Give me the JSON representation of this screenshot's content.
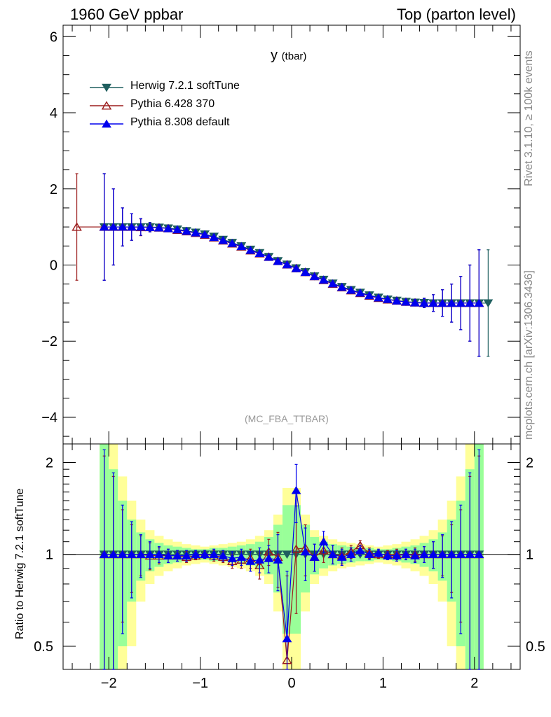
{
  "header": {
    "left": "1960 GeV ppbar",
    "right": "Top (parton level)"
  },
  "plot": {
    "title": "y",
    "title_sub": "(tbar)",
    "process": "(MC_FBA_TTBAR)"
  },
  "side_labels": {
    "rivet": "Rivet 3.1.10, ≥ 100k events",
    "mcplots": "mcplots.cern.ch [arXiv:1306.3436]"
  },
  "ratio_ylabel": "Ratio to Herwig 7.2.1 softTune",
  "legend": [
    {
      "label": "Herwig 7.2.1 softTune",
      "color": "#1f5f5f",
      "marker": "triangle-down-filled"
    },
    {
      "label": "Pythia 6.428 370",
      "color": "#9b1c1c",
      "marker": "triangle-up-open"
    },
    {
      "label": "Pythia 8.308 default",
      "color": "#0000ee",
      "marker": "triangle-up-filled"
    }
  ],
  "chart_data": [
    {
      "type": "line",
      "panel": "main",
      "xlim": [
        -2.5,
        2.5
      ],
      "ylim": [
        -4.7,
        6.3
      ],
      "xticks": [
        -2,
        -1,
        0,
        1,
        2
      ],
      "yticks": [
        -4,
        -2,
        0,
        2,
        4,
        6
      ],
      "ytick_labels": [
        "−4",
        "−2",
        "0",
        "2",
        "4",
        "6"
      ],
      "x": [
        -2.35,
        -2.05,
        -1.95,
        -1.85,
        -1.75,
        -1.65,
        -1.55,
        -1.45,
        -1.35,
        -1.25,
        -1.15,
        -1.05,
        -0.95,
        -0.85,
        -0.75,
        -0.65,
        -0.55,
        -0.45,
        -0.35,
        -0.25,
        -0.15,
        -0.05,
        0.05,
        0.15,
        0.25,
        0.35,
        0.45,
        0.55,
        0.65,
        0.75,
        0.85,
        0.95,
        1.05,
        1.15,
        1.25,
        1.35,
        1.45,
        1.55,
        1.65,
        1.75,
        1.85,
        1.95,
        2.05,
        2.15
      ],
      "series": [
        {
          "name": "Herwig 7.2.1 softTune",
          "y": [
            null,
            1.0,
            1.0,
            1.0,
            1.0,
            1.0,
            1.0,
            0.99,
            0.97,
            0.94,
            0.9,
            0.86,
            0.81,
            0.75,
            0.67,
            0.59,
            0.5,
            0.41,
            0.32,
            0.22,
            0.11,
            0.02,
            -0.08,
            -0.18,
            -0.29,
            -0.38,
            -0.48,
            -0.57,
            -0.65,
            -0.72,
            -0.79,
            -0.85,
            -0.9,
            -0.93,
            -0.96,
            -0.98,
            -0.99,
            -1.0,
            -1.0,
            -1.0,
            -1.0,
            -1.0,
            -1.0,
            -1.0
          ],
          "yerr": [
            null,
            1.4,
            1.0,
            0.5,
            0.35,
            0.22,
            0.12,
            0.08,
            0.06,
            0.05,
            0.05,
            0.04,
            0.04,
            0.04,
            0.04,
            0.04,
            0.04,
            0.04,
            0.04,
            0.04,
            0.04,
            0.04,
            0.04,
            0.04,
            0.04,
            0.04,
            0.04,
            0.04,
            0.04,
            0.04,
            0.04,
            0.04,
            0.05,
            0.05,
            0.06,
            0.08,
            0.12,
            0.22,
            0.35,
            0.5,
            0.7,
            1.0,
            1.4,
            1.4
          ]
        },
        {
          "name": "Pythia 6.428 370",
          "y": [
            1.0,
            1.0,
            1.0,
            1.0,
            1.0,
            0.99,
            0.99,
            0.98,
            0.96,
            0.92,
            0.88,
            0.84,
            0.79,
            0.72,
            0.64,
            0.56,
            0.48,
            0.38,
            0.3,
            0.21,
            0.1,
            0.01,
            -0.09,
            -0.19,
            -0.3,
            -0.4,
            -0.5,
            -0.59,
            -0.67,
            -0.74,
            -0.81,
            -0.87,
            -0.91,
            -0.94,
            -0.97,
            -0.99,
            -1.0,
            -1.0,
            -1.0,
            -1.0,
            -1.0,
            -1.0,
            -1.0,
            null
          ],
          "yerr": [
            1.4,
            1.4,
            1.0,
            0.5,
            0.35,
            0.22,
            0.12,
            0.08,
            0.06,
            0.05,
            0.05,
            0.04,
            0.04,
            0.04,
            0.04,
            0.04,
            0.04,
            0.04,
            0.04,
            0.04,
            0.04,
            0.04,
            0.04,
            0.04,
            0.04,
            0.04,
            0.04,
            0.04,
            0.04,
            0.04,
            0.04,
            0.04,
            0.05,
            0.05,
            0.06,
            0.08,
            0.12,
            0.22,
            0.35,
            0.5,
            0.7,
            1.0,
            1.4,
            null
          ]
        },
        {
          "name": "Pythia 8.308 default",
          "y": [
            null,
            1.0,
            1.0,
            1.0,
            1.0,
            1.0,
            0.99,
            0.98,
            0.96,
            0.93,
            0.89,
            0.85,
            0.8,
            0.73,
            0.65,
            0.57,
            0.49,
            0.39,
            0.31,
            0.21,
            0.1,
            0.01,
            -0.09,
            -0.19,
            -0.3,
            -0.39,
            -0.49,
            -0.58,
            -0.66,
            -0.73,
            -0.8,
            -0.86,
            -0.9,
            -0.94,
            -0.97,
            -0.99,
            -1.0,
            -1.0,
            -1.0,
            -1.0,
            -1.0,
            -1.0,
            -1.0,
            null
          ],
          "yerr": [
            null,
            1.4,
            1.0,
            0.5,
            0.35,
            0.22,
            0.12,
            0.08,
            0.06,
            0.05,
            0.05,
            0.04,
            0.04,
            0.04,
            0.04,
            0.04,
            0.04,
            0.04,
            0.04,
            0.04,
            0.04,
            0.04,
            0.04,
            0.04,
            0.04,
            0.04,
            0.04,
            0.04,
            0.04,
            0.04,
            0.04,
            0.04,
            0.05,
            0.05,
            0.06,
            0.08,
            0.12,
            0.22,
            0.35,
            0.5,
            0.7,
            1.0,
            1.4,
            null
          ]
        }
      ]
    },
    {
      "type": "line",
      "panel": "ratio",
      "ylabel": "Ratio to Herwig 7.2.1 softTune",
      "ylim": [
        0.42,
        2.3
      ],
      "yticks": [
        0.5,
        1,
        2
      ],
      "ytick_labels": [
        "0.5",
        "1",
        "2"
      ],
      "xticks": [
        -2,
        -1,
        0,
        1,
        2
      ],
      "xtick_labels": [
        "−2",
        "−1",
        "0",
        "1",
        "2"
      ],
      "x": [
        -2.05,
        -1.95,
        -1.85,
        -1.75,
        -1.65,
        -1.55,
        -1.45,
        -1.35,
        -1.25,
        -1.15,
        -1.05,
        -0.95,
        -0.85,
        -0.75,
        -0.65,
        -0.55,
        -0.45,
        -0.35,
        -0.25,
        -0.15,
        -0.05,
        0.05,
        0.15,
        0.25,
        0.35,
        0.45,
        0.55,
        0.65,
        0.75,
        0.85,
        0.95,
        1.05,
        1.15,
        1.25,
        1.35,
        1.45,
        1.55,
        1.65,
        1.75,
        1.85,
        1.95,
        2.05
      ],
      "bands": {
        "green_halfwidth": [
          1.4,
          0.9,
          0.5,
          0.3,
          0.18,
          0.12,
          0.09,
          0.07,
          0.06,
          0.05,
          0.04,
          0.04,
          0.05,
          0.05,
          0.06,
          0.07,
          0.08,
          0.1,
          0.14,
          0.25,
          0.45,
          0.45,
          0.25,
          0.14,
          0.1,
          0.08,
          0.07,
          0.06,
          0.05,
          0.05,
          0.04,
          0.04,
          0.05,
          0.06,
          0.07,
          0.09,
          0.12,
          0.18,
          0.3,
          0.5,
          0.9,
          1.4
        ],
        "yellow_halfwidth": [
          2.0,
          1.4,
          0.8,
          0.5,
          0.3,
          0.2,
          0.15,
          0.12,
          0.1,
          0.08,
          0.07,
          0.06,
          0.07,
          0.08,
          0.09,
          0.1,
          0.12,
          0.15,
          0.2,
          0.35,
          0.65,
          0.65,
          0.35,
          0.2,
          0.15,
          0.12,
          0.1,
          0.09,
          0.08,
          0.07,
          0.06,
          0.07,
          0.08,
          0.1,
          0.12,
          0.15,
          0.2,
          0.3,
          0.5,
          0.8,
          1.4,
          2.0
        ]
      },
      "series": [
        {
          "name": "Herwig 7.2.1 softTune",
          "y": [
            1.0,
            1.0,
            1.0,
            1.0,
            1.0,
            1.0,
            1.0,
            1.0,
            1.0,
            1.0,
            1.0,
            1.0,
            1.0,
            1.0,
            1.0,
            1.0,
            1.0,
            1.0,
            1.0,
            1.0,
            1.0,
            1.0,
            1.0,
            1.0,
            1.0,
            1.0,
            1.0,
            1.0,
            1.0,
            1.0,
            1.0,
            1.0,
            1.0,
            1.0,
            1.0,
            1.0,
            1.0,
            1.0,
            1.0,
            1.0,
            1.0,
            1.0
          ]
        },
        {
          "name": "Pythia 6.428 370",
          "y": [
            1.0,
            1.0,
            1.0,
            1.0,
            1.0,
            0.99,
            0.99,
            0.99,
            0.99,
            0.98,
            0.99,
            1.0,
            0.99,
            0.98,
            0.95,
            0.96,
            0.97,
            0.92,
            1.02,
            0.98,
            0.45,
            1.04,
            1.05,
            0.98,
            1.03,
            1.0,
            0.99,
            1.02,
            1.07,
            1.01,
            1.0,
            1.0,
            1.0,
            1.0,
            1.0,
            1.0,
            1.0,
            1.0,
            1.0,
            1.0,
            1.0,
            1.0
          ],
          "yerr": [
            1.1,
            0.8,
            0.4,
            0.25,
            0.15,
            0.1,
            0.06,
            0.05,
            0.04,
            0.04,
            0.03,
            0.03,
            0.04,
            0.04,
            0.05,
            0.06,
            0.07,
            0.09,
            0.1,
            0.2,
            0.4,
            0.4,
            0.2,
            0.1,
            0.09,
            0.07,
            0.06,
            0.05,
            0.04,
            0.04,
            0.03,
            0.03,
            0.04,
            0.04,
            0.05,
            0.06,
            0.1,
            0.15,
            0.25,
            0.4,
            0.8,
            1.1
          ]
        },
        {
          "name": "Pythia 8.308 default",
          "y": [
            1.0,
            1.0,
            1.0,
            1.0,
            1.0,
            1.0,
            1.0,
            0.99,
            0.99,
            0.99,
            1.0,
            1.0,
            1.0,
            0.99,
            0.97,
            0.98,
            0.95,
            0.96,
            0.97,
            0.96,
            0.53,
            1.62,
            1.02,
            0.98,
            1.1,
            1.0,
            0.98,
            1.0,
            1.03,
            1.0,
            1.01,
            0.99,
            0.99,
            1.0,
            0.99,
            1.0,
            1.0,
            1.0,
            1.0,
            1.0,
            1.0,
            1.0
          ],
          "yerr": [
            1.2,
            0.85,
            0.45,
            0.28,
            0.16,
            0.1,
            0.06,
            0.05,
            0.04,
            0.04,
            0.03,
            0.03,
            0.04,
            0.04,
            0.05,
            0.06,
            0.07,
            0.09,
            0.1,
            0.2,
            0.35,
            0.35,
            0.2,
            0.1,
            0.09,
            0.07,
            0.06,
            0.05,
            0.04,
            0.04,
            0.03,
            0.03,
            0.04,
            0.04,
            0.05,
            0.06,
            0.1,
            0.16,
            0.28,
            0.45,
            0.85,
            1.2
          ]
        }
      ]
    }
  ]
}
